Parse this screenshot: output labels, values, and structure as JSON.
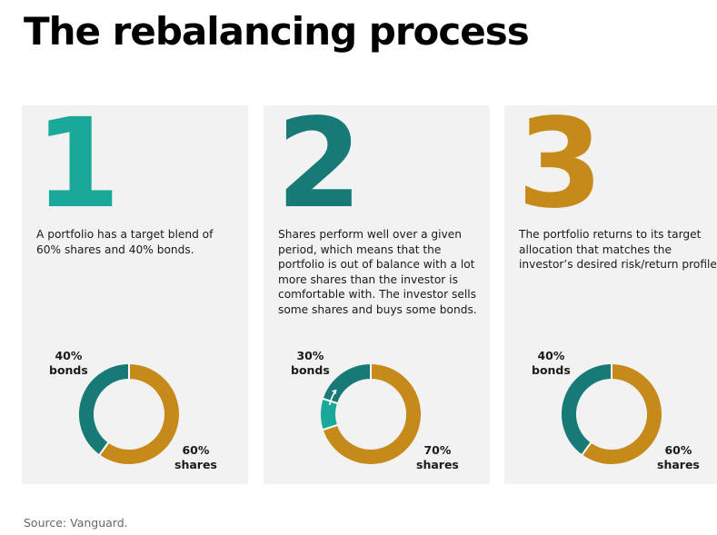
{
  "title": "The rebalancing process",
  "colors": {
    "teal_1": "#1aa89a",
    "teal_2": "#177a76",
    "bonds": "#177a76",
    "shares": "#c68a1a",
    "card_bg": "#f2f2f2"
  },
  "steps": [
    {
      "number": "1",
      "number_color": "#1aa89a",
      "description": "A portfolio has a target blend of 60% shares and 40% bonds.",
      "bonds_pct": "40%",
      "bonds_label": "bonds",
      "shares_pct": "60%",
      "shares_label": "shares",
      "bonds_value": 40,
      "shares_value": 60,
      "rebalance_value": 0
    },
    {
      "number": "2",
      "number_color": "#177a76",
      "description": "Shares perform well over a given period, which means that the portfolio is out of balance with a lot more shares than the investor is comfortable with. The investor sells some shares and buys some bonds.",
      "bonds_pct": "30%",
      "bonds_label": "bonds",
      "shares_pct": "70%",
      "shares_label": "shares",
      "bonds_value": 30,
      "shares_value": 70,
      "rebalance_value": 10
    },
    {
      "number": "3",
      "number_color": "#c68a1a",
      "description": "The portfolio returns to its target allocation that matches the investor’s desired risk/return profile.",
      "bonds_pct": "40%",
      "bonds_label": "bonds",
      "shares_pct": "60%",
      "shares_label": "shares",
      "bonds_value": 40,
      "shares_value": 60,
      "rebalance_value": 0
    }
  ],
  "source": "Source: Vanguard."
}
